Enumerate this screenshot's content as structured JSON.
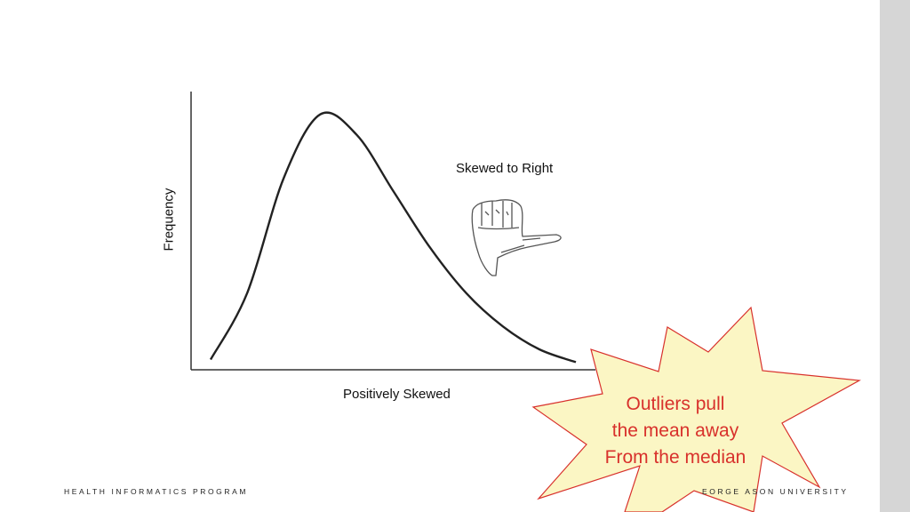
{
  "chart_data": {
    "type": "line",
    "title": "Skewed to Right",
    "xlabel": "Positively Skewed",
    "ylabel": "Frequency",
    "series": [
      {
        "values": [
          0.04,
          0.3,
          0.75,
          1.0,
          0.92,
          0.7,
          0.48,
          0.3,
          0.17,
          0.08,
          0.03
        ]
      }
    ],
    "x": [
      0,
      1,
      2,
      3,
      4,
      5,
      6,
      7,
      8,
      9,
      10
    ],
    "ylim": [
      0,
      1.1
    ],
    "grid": false,
    "legend": "none"
  },
  "callout": {
    "lines": [
      "Outliers pull",
      "the mean away",
      "From the median"
    ],
    "fill_color": "#fbf6c4",
    "stroke_color": "#d8312c",
    "text_color": "#d8312c"
  },
  "footer": {
    "left": "HEALTH INFORMATICS PROGRAM",
    "right": "EORGE   ASON UNIVERSITY"
  },
  "icons": {
    "hand": "thumb-pointing-right-hand-icon"
  }
}
